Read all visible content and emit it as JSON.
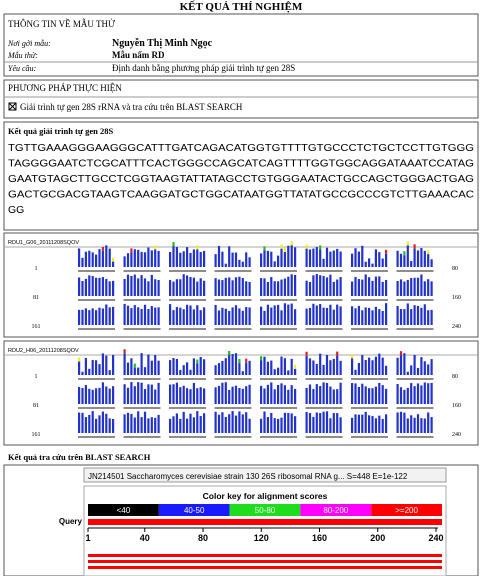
{
  "header": {
    "title": "KẾT QUẢ THÍ NGHIỆM"
  },
  "sample_info": {
    "heading": "THÔNG TIN VỀ MẪU THỬ",
    "rows": [
      [
        "Nơi gởi mẫu:",
        "Nguyễn Thị Minh Ngọc"
      ],
      [
        "Mẫu thử:",
        "Mẫu nấm RD"
      ],
      [
        "Yêu cầu:",
        "Định danh bằng phương pháp giải trình tự gen 28S"
      ]
    ]
  },
  "method": {
    "heading": "PHƯƠNG PHÁP THỰC HIỆN",
    "item": "Giải trình tự gen 28S rRNA và tra cứu trên BLAST SEARCH"
  },
  "sequence": {
    "heading": "Kết quả giải trình tự gen 28S",
    "lines": [
      "TGTTGAAAGGGAAGGGCATTTGATCAGACATGGTGTTTTGTGCCCTCTGCTCCTTGTGGG",
      "TAGGGGAATCTCGCATTTCACTGGGCCAGCATCAGTTTTGGTGGCAGGATAAATCCATAG",
      "GAATGTAGCTTGCCTCGGTAAGTATTATAGCCTGTGGGAATACTGCCAGCTGGGACTGAG",
      "GACTGCGACGTAAGTCAAGGATGCTGGCATAATGGTTATATGCCGCCCGTCTTGAAACAC",
      "GG"
    ]
  },
  "chromatograms": [
    {
      "label": "RDU1_G06_20111208SQOV",
      "starts": [
        1,
        81,
        161
      ],
      "ends": [
        80,
        160,
        240
      ]
    },
    {
      "label": "RDU2_H06_20111208SQOV",
      "starts": [
        1,
        81,
        161
      ],
      "ends": [
        80,
        160,
        240
      ]
    }
  ],
  "blast": {
    "heading": "Kết quả tra cứu trên BLAST SEARCH",
    "hit": "JN214501 Saccharomyces cerevisiae strain 130 26S ribosomal RNA g... S=448 E=1e-122",
    "key_title": "Color key for alignment scores",
    "key": [
      "<40",
      "40-50",
      "50-80",
      "80-200",
      ">=200"
    ],
    "query": "Query",
    "axis": [
      1,
      40,
      80,
      120,
      160,
      200,
      240
    ]
  }
}
